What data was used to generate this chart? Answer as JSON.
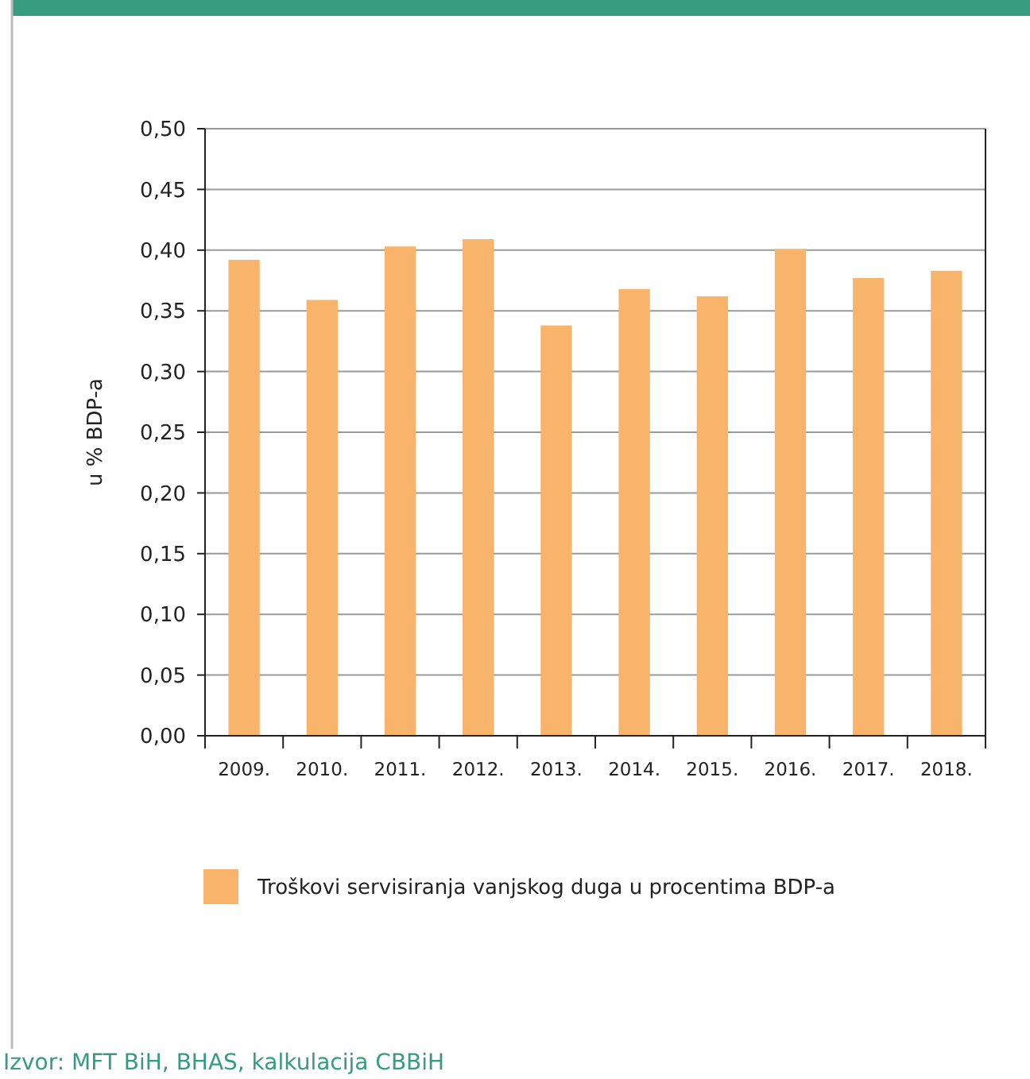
{
  "chart_data": {
    "type": "bar",
    "ylabel": "u % BDP-a",
    "categories": [
      "2009.",
      "2010.",
      "2011.",
      "2012.",
      "2013.",
      "2014.",
      "2015.",
      "2016.",
      "2017.",
      "2018."
    ],
    "series": [
      {
        "name": "Troškovi servisiranja vanjskog duga u procentima BDP-a",
        "color": "#f9b46b",
        "values": [
          0.392,
          0.359,
          0.403,
          0.409,
          0.338,
          0.368,
          0.362,
          0.401,
          0.377,
          0.383
        ]
      }
    ],
    "ylim": [
      0,
      0.5
    ],
    "yticks": [
      {
        "value": 0,
        "label": "0,00"
      },
      {
        "value": 0.05,
        "label": "0,05"
      },
      {
        "value": 0.1,
        "label": "0,10"
      },
      {
        "value": 0.15,
        "label": "0,15"
      },
      {
        "value": 0.2,
        "label": "0,20"
      },
      {
        "value": 0.25,
        "label": "0,25"
      },
      {
        "value": 0.3,
        "label": "0,30"
      },
      {
        "value": 0.35,
        "label": "0,35"
      },
      {
        "value": 0.4,
        "label": "0,40"
      },
      {
        "value": 0.45,
        "label": "0,45"
      },
      {
        "value": 0.5,
        "label": "0,50"
      }
    ],
    "grid": "y",
    "legend": "bottom",
    "annotations": [
      "Izvor: MFT BiH, BHAS, kalkulacija CBBiH"
    ]
  }
}
